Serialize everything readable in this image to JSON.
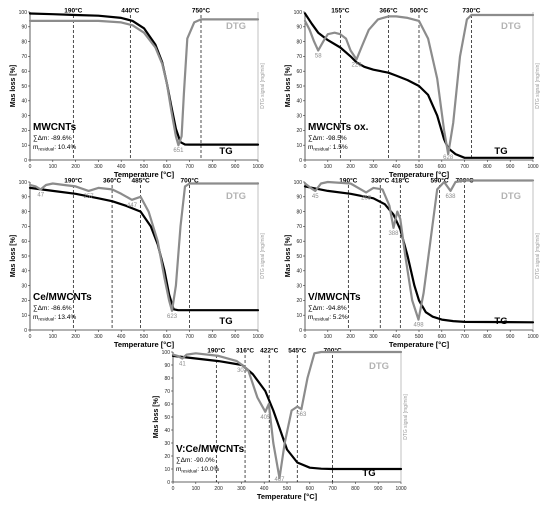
{
  "panels": [
    {
      "ylabel": "Mas loss [%]",
      "xlabel": "Temperature [°C]",
      "y2label": "DTG signal [mg/min]",
      "dtg_label": "DTG",
      "tg_label": "TG",
      "sample": "MWCNTs",
      "mass_change": "∑Δm: -89.6%",
      "residual_prefix": "m",
      "residual_sub": "residual",
      "residual_value": ": 10.4%"
    },
    {
      "ylabel": "Mas loss [%]",
      "xlabel": "Temperature [°C]",
      "y2label": "DTG signal [mg/min]",
      "dtg_label": "DTG",
      "tg_label": "TG",
      "sample": "MWCNTs ox.",
      "mass_change": "∑Δm: -98.5%",
      "residual_prefix": "m",
      "residual_sub": "residual",
      "residual_value": ": 1.5%"
    },
    {
      "ylabel": "Mas loss [%]",
      "xlabel": "Temperature [°C]",
      "y2label": "DTG signal [mg/min]",
      "dtg_label": "DTG",
      "tg_label": "TG",
      "sample": "Ce/MWCNTs",
      "mass_change": "∑Δm: -86.6%",
      "residual_prefix": "m",
      "residual_sub": "residual",
      "residual_value": ": 13.4%"
    },
    {
      "ylabel": "Mas loss [%]",
      "xlabel": "Temperature [°C]",
      "y2label": "DTG signal [mg/min]",
      "dtg_label": "DTG",
      "tg_label": "TG",
      "sample": "V/MWCNTs",
      "mass_change": "∑Δm: -94.8%",
      "residual_prefix": "m",
      "residual_sub": "residual",
      "residual_value": ": 5.2%"
    },
    {
      "ylabel": "Mas loss [%]",
      "xlabel": "Temperature [°C]",
      "y2label": "DTG signal [mg/min]",
      "dtg_label": "DTG",
      "tg_label": "TG",
      "sample": "V:Ce/MWCNTs",
      "mass_change": "∑Δm: -90.0%",
      "residual_prefix": "m",
      "residual_sub": "residual",
      "residual_value": ": 10.0%"
    }
  ],
  "colors": {
    "tg": "#000000",
    "dtg": "#8c8c8c",
    "axis": "#333333",
    "vline": "#000000"
  },
  "chart_data": [
    {
      "type": "line",
      "xlim": [
        0,
        1000
      ],
      "ylim": [
        0,
        100
      ],
      "xticks": [
        0,
        100,
        200,
        300,
        400,
        500,
        600,
        700,
        800,
        900,
        1000
      ],
      "yticks": [
        0,
        10,
        20,
        30,
        40,
        50,
        60,
        70,
        80,
        90,
        100
      ],
      "vlines": [
        {
          "x": 190,
          "label": "190°C"
        },
        {
          "x": 440,
          "label": "440°C"
        },
        {
          "x": 750,
          "label": "750°C"
        }
      ],
      "peaks": [
        {
          "x": 651,
          "y": 10,
          "label": "651"
        }
      ],
      "series": [
        {
          "name": "TG",
          "x": [
            0,
            100,
            200,
            300,
            400,
            450,
            500,
            550,
            580,
            600,
            620,
            640,
            660,
            680,
            700,
            1000
          ],
          "y": [
            99,
            98.5,
            98,
            97.5,
            96,
            94,
            89,
            78,
            66,
            52,
            36,
            21,
            12,
            10.5,
            10.4,
            10.4
          ]
        },
        {
          "name": "DTG",
          "x": [
            0,
            100,
            200,
            300,
            400,
            450,
            500,
            550,
            580,
            600,
            620,
            640,
            651,
            665,
            675,
            690,
            720,
            750,
            800,
            1000
          ],
          "y": [
            94,
            94,
            94,
            94,
            93,
            91,
            86,
            76,
            65,
            52,
            33,
            16,
            10,
            16,
            45,
            82,
            93,
            95,
            95,
            95
          ]
        }
      ]
    },
    {
      "type": "line",
      "xlim": [
        0,
        1000
      ],
      "ylim": [
        0,
        100
      ],
      "xticks": [
        0,
        100,
        200,
        300,
        400,
        500,
        600,
        700,
        800,
        900,
        1000
      ],
      "yticks": [
        0,
        10,
        20,
        30,
        40,
        50,
        60,
        70,
        80,
        90,
        100
      ],
      "vlines": [
        {
          "x": 155,
          "label": "155°C"
        },
        {
          "x": 366,
          "label": "366°C"
        },
        {
          "x": 500,
          "label": "500°C"
        },
        {
          "x": 730,
          "label": "730°C"
        }
      ],
      "peaks": [
        {
          "x": 58,
          "y": 74,
          "label": "58"
        },
        {
          "x": 226,
          "y": 68,
          "label": "226"
        },
        {
          "x": 628,
          "y": 4,
          "label": "628"
        }
      ],
      "series": [
        {
          "name": "TG",
          "x": [
            0,
            30,
            58,
            100,
            155,
            200,
            226,
            260,
            300,
            366,
            400,
            450,
            500,
            540,
            580,
            610,
            628,
            660,
            700,
            1000
          ],
          "y": [
            99,
            92,
            86,
            81,
            76,
            70,
            66,
            63,
            61,
            59,
            57,
            54,
            50,
            44,
            30,
            14,
            8,
            4,
            1.5,
            1.5
          ]
        },
        {
          "name": "DTG",
          "x": [
            0,
            20,
            40,
            58,
            80,
            100,
            130,
            155,
            180,
            200,
            226,
            250,
            280,
            320,
            366,
            400,
            450,
            500,
            540,
            580,
            610,
            628,
            650,
            680,
            710,
            730,
            760,
            1000
          ],
          "y": [
            94,
            88,
            80,
            74,
            80,
            85,
            86,
            85,
            82,
            74,
            68,
            77,
            88,
            95,
            97,
            97,
            96,
            94,
            82,
            55,
            20,
            4,
            25,
            70,
            95,
            98,
            98,
            98
          ]
        }
      ]
    },
    {
      "type": "line",
      "xlim": [
        0,
        1000
      ],
      "ylim": [
        0,
        100
      ],
      "xticks": [
        0,
        100,
        200,
        300,
        400,
        500,
        600,
        700,
        800,
        900,
        1000
      ],
      "yticks": [
        0,
        10,
        20,
        30,
        40,
        50,
        60,
        70,
        80,
        90,
        100
      ],
      "vlines": [
        {
          "x": 190,
          "label": "190°C"
        },
        {
          "x": 360,
          "label": "360°C"
        },
        {
          "x": 485,
          "label": "485°C"
        },
        {
          "x": 700,
          "label": "700°C"
        }
      ],
      "peaks": [
        {
          "x": 47,
          "y": 95,
          "label": "47"
        },
        {
          "x": 257,
          "y": 94,
          "label": "257"
        },
        {
          "x": 447,
          "y": 88,
          "label": "447"
        },
        {
          "x": 623,
          "y": 13,
          "label": "623"
        }
      ],
      "series": [
        {
          "name": "TG",
          "x": [
            0,
            100,
            200,
            300,
            360,
            420,
            485,
            530,
            560,
            590,
            610,
            630,
            650,
            700,
            1000
          ],
          "y": [
            96,
            94,
            92,
            89,
            87,
            84,
            80,
            70,
            58,
            40,
            24,
            14,
            13.4,
            13.4,
            13.4
          ]
        },
        {
          "name": "DTG",
          "x": [
            0,
            25,
            47,
            70,
            100,
            150,
            200,
            257,
            300,
            360,
            400,
            447,
            485,
            520,
            560,
            590,
            610,
            623,
            640,
            660,
            680,
            700,
            1000
          ],
          "y": [
            98,
            97,
            95,
            98,
            99,
            98,
            97,
            94,
            96,
            95,
            92,
            88,
            90,
            80,
            60,
            35,
            20,
            13,
            30,
            70,
            97,
            99,
            99
          ]
        }
      ]
    },
    {
      "type": "line",
      "xlim": [
        0,
        1000
      ],
      "ylim": [
        0,
        100
      ],
      "xticks": [
        0,
        100,
        200,
        300,
        400,
        500,
        600,
        700,
        800,
        900,
        1000
      ],
      "yticks": [
        0,
        10,
        20,
        30,
        40,
        50,
        60,
        70,
        80,
        90,
        100
      ],
      "vlines": [
        {
          "x": 190,
          "label": "190°C"
        },
        {
          "x": 330,
          "label": "330°C"
        },
        {
          "x": 418,
          "label": "418°C"
        },
        {
          "x": 590,
          "label": "590°C"
        },
        {
          "x": 700,
          "label": "700°C"
        }
      ],
      "peaks": [
        {
          "x": 45,
          "y": 94,
          "label": "45"
        },
        {
          "x": 268,
          "y": 93,
          "label": "268"
        },
        {
          "x": 388,
          "y": 69,
          "label": "388"
        },
        {
          "x": 498,
          "y": 7,
          "label": "498"
        },
        {
          "x": 638,
          "y": 94,
          "label": "638"
        }
      ],
      "series": [
        {
          "name": "TG",
          "x": [
            0,
            100,
            200,
            300,
            350,
            388,
            418,
            450,
            480,
            500,
            530,
            560,
            600,
            650,
            700,
            1000
          ],
          "y": [
            97,
            94,
            92,
            89,
            85,
            78,
            68,
            50,
            30,
            20,
            12,
            9,
            7,
            6,
            5.5,
            5.2
          ]
        },
        {
          "name": "DTG",
          "x": [
            0,
            25,
            45,
            70,
            100,
            200,
            268,
            300,
            340,
            370,
            388,
            405,
            418,
            440,
            470,
            498,
            520,
            550,
            580,
            610,
            638,
            660,
            700,
            1000
          ],
          "y": [
            99,
            96,
            94,
            99,
            100,
            99,
            93,
            96,
            95,
            84,
            69,
            80,
            75,
            50,
            20,
            7,
            25,
            60,
            95,
            100,
            94,
            100,
            101,
            101
          ]
        }
      ]
    },
    {
      "type": "line",
      "xlim": [
        0,
        1000
      ],
      "ylim": [
        0,
        100
      ],
      "xticks": [
        0,
        100,
        200,
        300,
        400,
        500,
        600,
        700,
        800,
        900,
        1000
      ],
      "yticks": [
        0,
        10,
        20,
        30,
        40,
        50,
        60,
        70,
        80,
        90,
        100
      ],
      "vlines": [
        {
          "x": 190,
          "label": "190°C"
        },
        {
          "x": 316,
          "label": "316°C"
        },
        {
          "x": 422,
          "label": "422°C"
        },
        {
          "x": 545,
          "label": "545°C"
        },
        {
          "x": 700,
          "label": "700°C"
        }
      ],
      "peaks": [
        {
          "x": 41,
          "y": 95,
          "label": "41"
        },
        {
          "x": 303,
          "y": 90,
          "label": "303"
        },
        {
          "x": 405,
          "y": 54,
          "label": "405"
        },
        {
          "x": 467,
          "y": 3,
          "label": "467"
        },
        {
          "x": 563,
          "y": 56,
          "label": "563"
        }
      ],
      "series": [
        {
          "name": "TG",
          "x": [
            0,
            100,
            200,
            303,
            350,
            405,
            440,
            470,
            500,
            545,
            600,
            650,
            700,
            1000
          ],
          "y": [
            97,
            95,
            93,
            90,
            83,
            70,
            55,
            40,
            25,
            15,
            11,
            10.2,
            10,
            10
          ]
        },
        {
          "name": "DTG",
          "x": [
            0,
            20,
            41,
            60,
            100,
            200,
            280,
            303,
            330,
            370,
            405,
            420,
            440,
            467,
            490,
            520,
            545,
            563,
            590,
            620,
            650,
            700,
            1000
          ],
          "y": [
            98,
            97,
            95,
            98,
            99,
            97,
            93,
            90,
            86,
            65,
            54,
            60,
            30,
            3,
            30,
            55,
            58,
            56,
            80,
            99,
            100,
            100,
            100
          ]
        }
      ]
    }
  ]
}
